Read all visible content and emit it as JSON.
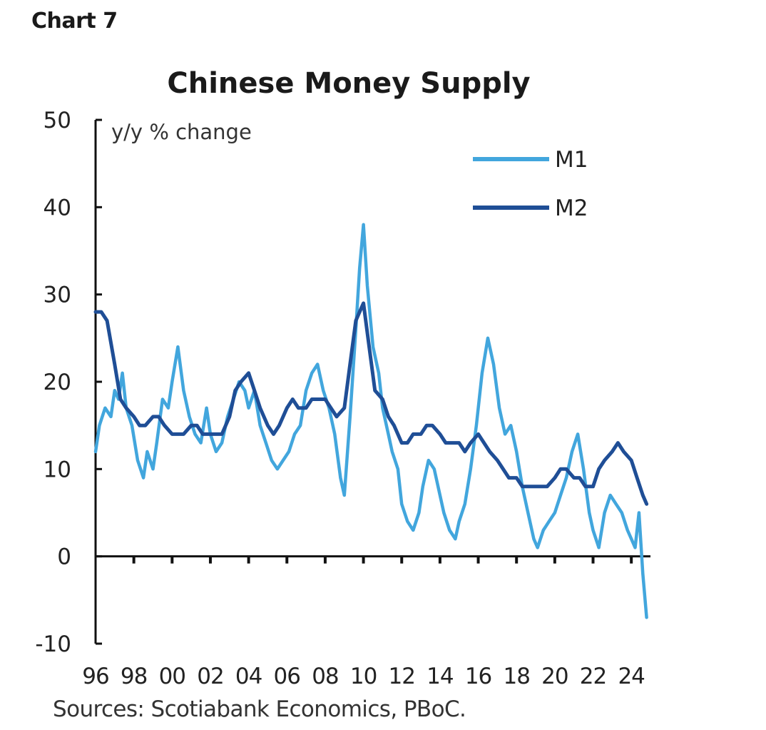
{
  "header": {
    "chart_label": "Chart 7"
  },
  "footer": {
    "source": "Sources: Scotiabank Economics, PBoC."
  },
  "colors": {
    "m1": "#42a6dd",
    "m2": "#1f4e96",
    "axis": "#111111",
    "text": "#222222"
  },
  "chart_data": {
    "type": "line",
    "title": "Chinese Money Supply",
    "ylabel": "y/y % change",
    "xlabel": "",
    "ylim": [
      -10,
      50
    ],
    "xlim": [
      1996,
      2025
    ],
    "y_ticks": [
      "50",
      "40",
      "30",
      "20",
      "10",
      "0",
      "-10"
    ],
    "x_tick_labels": [
      "96",
      "98",
      "00",
      "02",
      "04",
      "06",
      "08",
      "10",
      "12",
      "14",
      "16",
      "18",
      "20",
      "22",
      "24"
    ],
    "grid": false,
    "legend_position": "top-right",
    "series": [
      {
        "name": "M1",
        "color": "#42a6dd",
        "x": [
          1996.0,
          1996.2,
          1996.5,
          1996.8,
          1997.0,
          1997.2,
          1997.4,
          1997.6,
          1997.9,
          1998.2,
          1998.5,
          1998.7,
          1999.0,
          1999.2,
          1999.5,
          1999.8,
          2000.0,
          2000.3,
          2000.6,
          2000.9,
          2001.2,
          2001.5,
          2001.8,
          2002.0,
          2002.3,
          2002.6,
          2002.9,
          2003.2,
          2003.5,
          2003.8,
          2004.0,
          2004.3,
          2004.6,
          2004.9,
          2005.2,
          2005.5,
          2005.8,
          2006.1,
          2006.4,
          2006.7,
          2007.0,
          2007.3,
          2007.6,
          2007.9,
          2008.2,
          2008.5,
          2008.8,
          2009.0,
          2009.3,
          2009.6,
          2009.8,
          2010.0,
          2010.2,
          2010.5,
          2010.8,
          2011.0,
          2011.3,
          2011.5,
          2011.8,
          2012.0,
          2012.3,
          2012.6,
          2012.9,
          2013.1,
          2013.4,
          2013.7,
          2014.0,
          2014.2,
          2014.5,
          2014.8,
          2015.0,
          2015.3,
          2015.6,
          2015.9,
          2016.2,
          2016.5,
          2016.8,
          2017.1,
          2017.4,
          2017.7,
          2018.0,
          2018.3,
          2018.6,
          2018.9,
          2019.1,
          2019.4,
          2019.7,
          2020.0,
          2020.3,
          2020.6,
          2020.9,
          2021.2,
          2021.5,
          2021.8,
          2022.0,
          2022.3,
          2022.6,
          2022.9,
          2023.2,
          2023.5,
          2023.8,
          2024.0,
          2024.2,
          2024.4,
          2024.6,
          2024.8
        ],
        "values": [
          12,
          15,
          17,
          16,
          19,
          18,
          21,
          17,
          15,
          11,
          9,
          12,
          10,
          13,
          18,
          17,
          20,
          24,
          19,
          16,
          14,
          13,
          17,
          14,
          12,
          13,
          16,
          18,
          20,
          19,
          17,
          19,
          15,
          13,
          11,
          10,
          11,
          12,
          14,
          15,
          19,
          21,
          22,
          19,
          17,
          14,
          9,
          7,
          16,
          26,
          33,
          38,
          31,
          24,
          21,
          17,
          14,
          12,
          10,
          6,
          4,
          3,
          5,
          8,
          11,
          10,
          7,
          5,
          3,
          2,
          4,
          6,
          10,
          15,
          21,
          25,
          22,
          17,
          14,
          15,
          12,
          8,
          5,
          2,
          1,
          3,
          4,
          5,
          7,
          9,
          12,
          14,
          10,
          5,
          3,
          1,
          5,
          7,
          6,
          5,
          3,
          2,
          1,
          5,
          -2,
          -7
        ]
      },
      {
        "name": "M2",
        "color": "#1f4e96",
        "x": [
          1996.0,
          1996.3,
          1996.6,
          1997.0,
          1997.3,
          1997.6,
          1998.0,
          1998.3,
          1998.6,
          1999.0,
          1999.3,
          1999.6,
          2000.0,
          2000.3,
          2000.6,
          2001.0,
          2001.3,
          2001.6,
          2002.0,
          2002.3,
          2002.6,
          2003.0,
          2003.3,
          2003.6,
          2004.0,
          2004.3,
          2004.6,
          2005.0,
          2005.3,
          2005.6,
          2006.0,
          2006.3,
          2006.6,
          2007.0,
          2007.3,
          2007.6,
          2008.0,
          2008.3,
          2008.6,
          2009.0,
          2009.3,
          2009.6,
          2009.8,
          2010.0,
          2010.3,
          2010.6,
          2011.0,
          2011.3,
          2011.6,
          2012.0,
          2012.3,
          2012.6,
          2013.0,
          2013.3,
          2013.6,
          2014.0,
          2014.3,
          2014.6,
          2015.0,
          2015.3,
          2015.6,
          2016.0,
          2016.3,
          2016.6,
          2017.0,
          2017.3,
          2017.6,
          2018.0,
          2018.3,
          2018.6,
          2019.0,
          2019.3,
          2019.6,
          2020.0,
          2020.3,
          2020.6,
          2021.0,
          2021.3,
          2021.6,
          2022.0,
          2022.3,
          2022.6,
          2023.0,
          2023.3,
          2023.6,
          2024.0,
          2024.3,
          2024.6,
          2024.8
        ],
        "values": [
          28,
          28,
          27,
          22,
          18,
          17,
          16,
          15,
          15,
          16,
          16,
          15,
          14,
          14,
          14,
          15,
          15,
          14,
          14,
          14,
          14,
          16,
          19,
          20,
          21,
          19,
          17,
          15,
          14,
          15,
          17,
          18,
          17,
          17,
          18,
          18,
          18,
          17,
          16,
          17,
          22,
          27,
          28,
          29,
          24,
          19,
          18,
          16,
          15,
          13,
          13,
          14,
          14,
          15,
          15,
          14,
          13,
          13,
          13,
          12,
          13,
          14,
          13,
          12,
          11,
          10,
          9,
          9,
          8,
          8,
          8,
          8,
          8,
          9,
          10,
          10,
          9,
          9,
          8,
          8,
          10,
          11,
          12,
          13,
          12,
          11,
          9,
          7,
          6
        ]
      }
    ]
  }
}
